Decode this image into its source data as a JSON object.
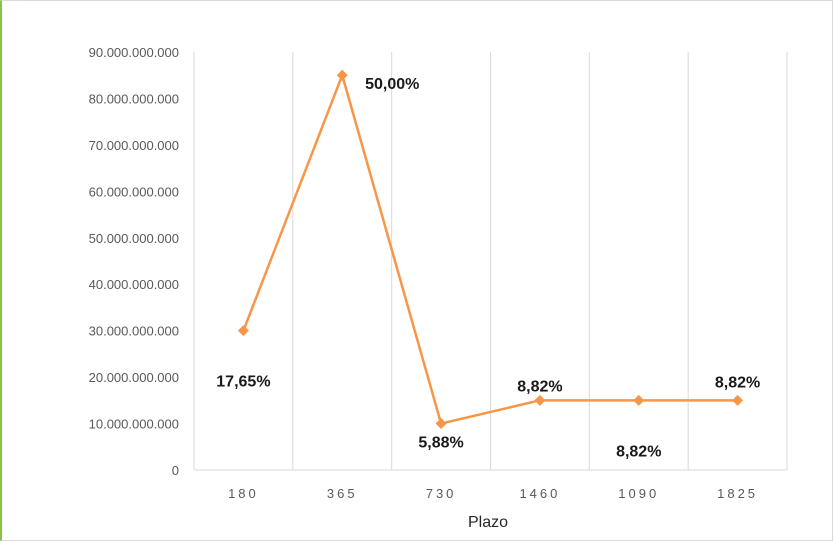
{
  "chart_data": {
    "type": "line",
    "title": "",
    "xlabel": "Plazo",
    "ylabel": "",
    "categories": [
      "180",
      "365",
      "730",
      "1460",
      "1090",
      "1825"
    ],
    "ylim": [
      0,
      90000000000
    ],
    "y_ticks": [
      0,
      10000000000,
      20000000000,
      30000000000,
      40000000000,
      50000000000,
      60000000000,
      70000000000,
      80000000000,
      90000000000
    ],
    "y_tick_labels": [
      "0",
      "10.000.000.000",
      "20.000.000.000",
      "30.000.000.000",
      "40.000.000.000",
      "50.000.000.000",
      "60.000.000.000",
      "70.000.000.000",
      "80.000.000.000",
      "90.000.000.000"
    ],
    "series": [
      {
        "values": [
          30000000000,
          85000000000,
          10000000000,
          15000000000,
          15000000000,
          15000000000
        ],
        "data_labels": [
          "17,65%",
          "50,00%",
          "5,88%",
          "8,82%",
          "8,82%",
          "8,82%"
        ]
      }
    ],
    "line_color": "#f79646",
    "grid": "vertical",
    "legend": "none"
  }
}
